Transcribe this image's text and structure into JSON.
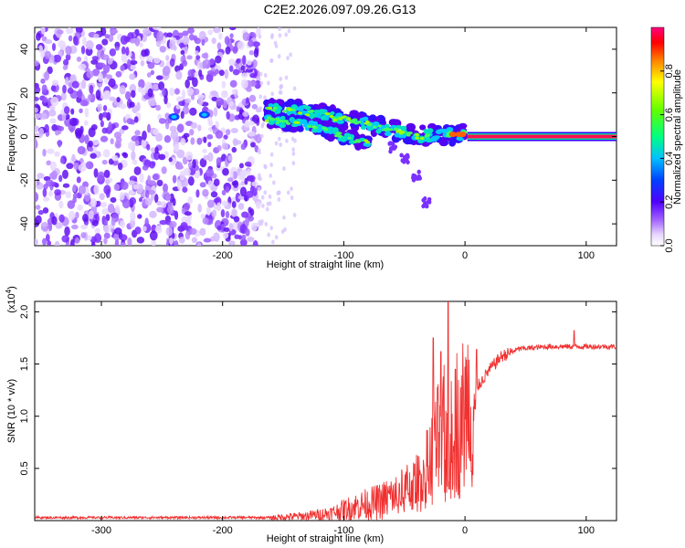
{
  "title": "C2E2.2026.097.09.26.G13",
  "chart_data": [
    {
      "type": "heatmap",
      "xlabel": "Height of straight line (km)",
      "ylabel": "Frequency (Hz)",
      "xlim": [
        -355,
        125
      ],
      "ylim": [
        -50,
        50
      ],
      "x_ticks": [
        -300,
        -200,
        -100,
        0,
        100
      ],
      "y_ticks": [
        -40,
        -20,
        0,
        20,
        40
      ],
      "colorbar": {
        "label": "Normalized spectral amplitude",
        "range": [
          0,
          1
        ],
        "ticks": [
          0.0,
          0.2,
          0.4,
          0.6,
          0.8
        ]
      },
      "features": {
        "noise_region_x": [
          -355,
          -170
        ],
        "sparse_region_x": [
          -170,
          -140
        ],
        "descending_track": [
          {
            "x": -165,
            "y": 12
          },
          {
            "x": -140,
            "y": 12
          },
          {
            "x": -120,
            "y": 10
          },
          {
            "x": -100,
            "y": 8
          },
          {
            "x": -80,
            "y": 6
          },
          {
            "x": -60,
            "y": 3
          },
          {
            "x": -40,
            "y": 0
          },
          {
            "x": -20,
            "y": 1
          },
          {
            "x": 0,
            "y": 1
          }
        ],
        "secondary_track": [
          {
            "x": -165,
            "y": 8
          },
          {
            "x": -140,
            "y": 6
          },
          {
            "x": -120,
            "y": 4
          },
          {
            "x": -100,
            "y": 0
          },
          {
            "x": -80,
            "y": -3
          }
        ],
        "falling_branch": [
          {
            "x": -60,
            "y": -5
          },
          {
            "x": -50,
            "y": -10
          },
          {
            "x": -40,
            "y": -18
          },
          {
            "x": -32,
            "y": -30
          }
        ],
        "small_blobs": [
          {
            "x": -240,
            "y": 9
          },
          {
            "x": -215,
            "y": 10
          }
        ],
        "tone_line": {
          "y": 0,
          "x_start": 2,
          "x_end": 125
        }
      }
    },
    {
      "type": "line",
      "xlabel": "Height of straight line (km)",
      "ylabel": "SNR (10 * v/v)",
      "scale_note": "(x10",
      "scale_exp": "4",
      "scale_close": ")",
      "xlim": [
        -355,
        125
      ],
      "ylim": [
        0,
        2.1
      ],
      "x_ticks": [
        -300,
        -200,
        -100,
        0,
        100
      ],
      "y_ticks": [
        0.5,
        1.0,
        1.5,
        2.0
      ],
      "y_tick_labels": [
        "0.5",
        "1.0",
        "1.5",
        "2.0"
      ],
      "series": [
        {
          "color": "#f03030",
          "envelope": [
            {
              "x": -355,
              "y": 0.03
            },
            {
              "x": -160,
              "y": 0.03
            },
            {
              "x": -130,
              "y": 0.05
            },
            {
              "x": -110,
              "y": 0.08
            },
            {
              "x": -90,
              "y": 0.15
            },
            {
              "x": -70,
              "y": 0.2
            },
            {
              "x": -55,
              "y": 0.28
            },
            {
              "x": -40,
              "y": 0.38
            },
            {
              "x": -30,
              "y": 0.6
            },
            {
              "x": -20,
              "y": 0.85
            },
            {
              "x": -10,
              "y": 1.0
            },
            {
              "x": 0,
              "y": 1.1
            },
            {
              "x": 10,
              "y": 1.28
            },
            {
              "x": 20,
              "y": 1.45
            },
            {
              "x": 30,
              "y": 1.58
            },
            {
              "x": 45,
              "y": 1.65
            },
            {
              "x": 70,
              "y": 1.67
            },
            {
              "x": 125,
              "y": 1.67
            }
          ],
          "peaks": [
            {
              "x": -26,
              "y": 1.75
            },
            {
              "x": -20,
              "y": 1.62
            },
            {
              "x": -14,
              "y": 2.1
            },
            {
              "x": -8,
              "y": 1.45
            },
            {
              "x": 90,
              "y": 1.82
            }
          ]
        }
      ]
    }
  ]
}
